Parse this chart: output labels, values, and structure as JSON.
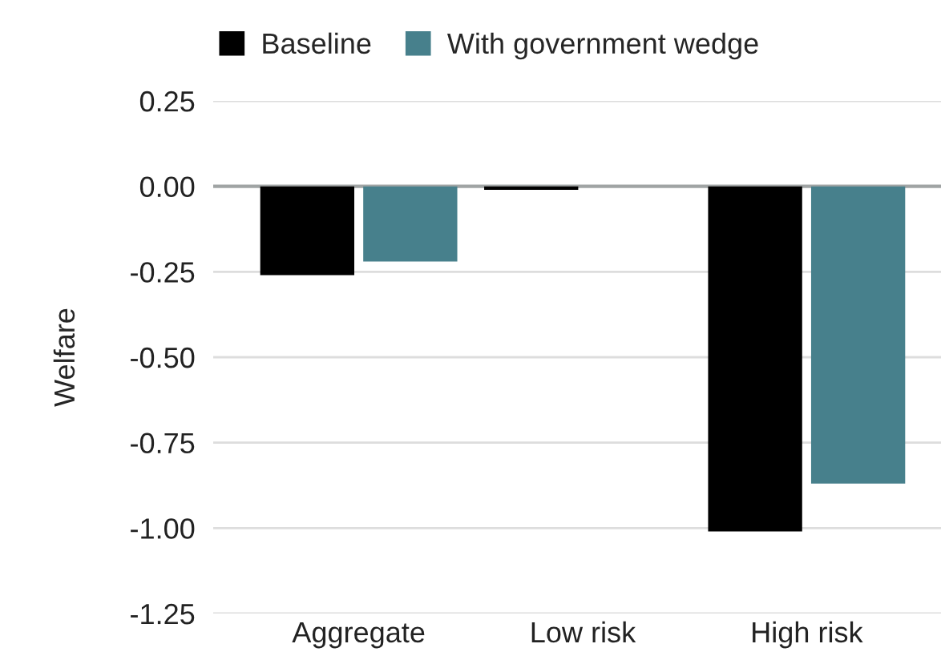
{
  "chart_data": {
    "type": "bar",
    "ylabel": "Welfare",
    "categories": [
      "Aggregate",
      "Low risk",
      "High risk"
    ],
    "series": [
      {
        "name": "Baseline",
        "color": "#000000",
        "values": [
          -0.26,
          -0.01,
          -1.01
        ]
      },
      {
        "name": "With government wedge",
        "color": "#47808c",
        "values": [
          -0.22,
          null,
          -0.87
        ]
      }
    ],
    "ylim": [
      -1.25,
      0.25
    ],
    "yticks": [
      {
        "value": 0.25,
        "label": "0.25"
      },
      {
        "value": 0,
        "label": "0.00"
      },
      {
        "value": -0.25,
        "label": "-0.25"
      },
      {
        "value": -0.5,
        "label": "-0.50"
      },
      {
        "value": -0.75,
        "label": "-0.75"
      },
      {
        "value": -1,
        "label": "-1.00"
      },
      {
        "value": -1.25,
        "label": "-1.25"
      }
    ],
    "ref_lines": [
      {
        "axis": "y",
        "value": 0,
        "color": "#a0a4a4"
      }
    ],
    "grid": "y",
    "legend": "top"
  }
}
